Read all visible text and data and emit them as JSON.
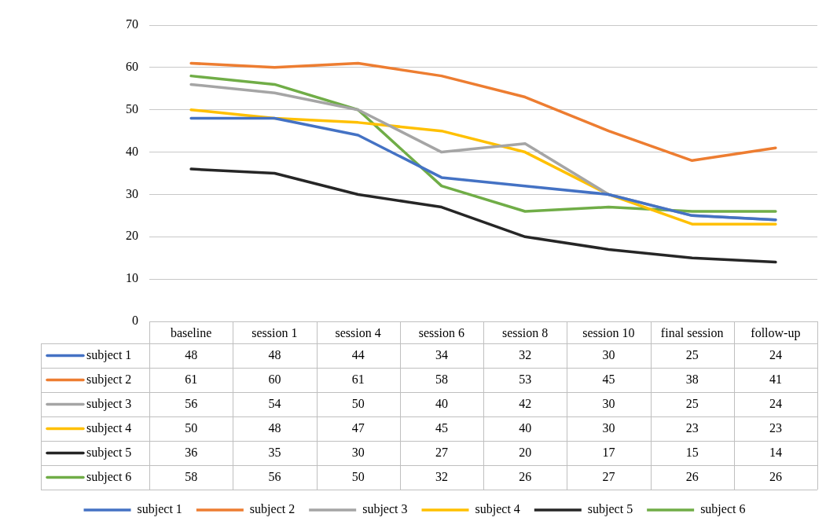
{
  "chart_data": {
    "type": "line",
    "categories": [
      "baseline",
      "session 1",
      "session 4",
      "session 6",
      "session 8",
      "session 10",
      "final session",
      "follow-up"
    ],
    "series": [
      {
        "name": "subject 1",
        "color": "#4472c4",
        "values": [
          48,
          48,
          44,
          34,
          32,
          30,
          25,
          24
        ]
      },
      {
        "name": "subject 2",
        "color": "#ed7d31",
        "values": [
          61,
          60,
          61,
          58,
          53,
          45,
          38,
          41
        ]
      },
      {
        "name": "subject 3",
        "color": "#a5a5a5",
        "values": [
          56,
          54,
          50,
          40,
          42,
          30,
          25,
          24
        ]
      },
      {
        "name": "subject 4",
        "color": "#ffc000",
        "values": [
          50,
          48,
          47,
          45,
          40,
          30,
          23,
          23
        ]
      },
      {
        "name": "subject 5",
        "color": "#262626",
        "values": [
          36,
          35,
          30,
          27,
          20,
          17,
          15,
          14
        ]
      },
      {
        "name": "subject 6",
        "color": "#70ad47",
        "values": [
          58,
          56,
          50,
          32,
          26,
          27,
          26,
          26
        ]
      }
    ],
    "ylim": [
      0,
      70
    ],
    "yticks": [
      0,
      10,
      20,
      30,
      40,
      50,
      60,
      70
    ],
    "grid": "y",
    "legend": "bottom",
    "marker": "none",
    "line_style": "solid",
    "data_labels": true
  }
}
